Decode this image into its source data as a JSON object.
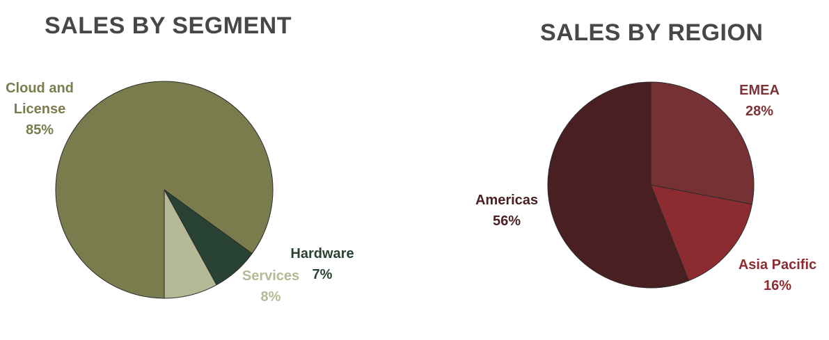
{
  "chart_data": [
    {
      "type": "pie",
      "title": "SALES BY SEGMENT",
      "slices": [
        {
          "label": "Cloud and License",
          "label_lines": [
            "Cloud and",
            "License"
          ],
          "value_label": "85%",
          "value": 85,
          "color": "#7a7c4d",
          "label_color": "#7a7c4d"
        },
        {
          "label": "Hardware",
          "label_lines": [
            "Hardware"
          ],
          "value_label": "7%",
          "value": 7,
          "color": "#284334",
          "label_color": "#284334"
        },
        {
          "label": "Services",
          "label_lines": [
            "Services"
          ],
          "value_label": "8%",
          "value": 8,
          "color": "#b5b995",
          "label_color": "#b5b995"
        }
      ]
    },
    {
      "type": "pie",
      "title": "SALES BY REGION",
      "slices": [
        {
          "label": "EMEA",
          "label_lines": [
            "EMEA"
          ],
          "value_label": "28%",
          "value": 28,
          "color": "#763135",
          "label_color": "#7c3338"
        },
        {
          "label": "Asia Pacific",
          "label_lines": [
            "Asia Pacific"
          ],
          "value_label": "16%",
          "value": 16,
          "color": "#8c2c31",
          "label_color": "#8c2c31"
        },
        {
          "label": "Americas",
          "label_lines": [
            "Americas"
          ],
          "value_label": "56%",
          "value": 56,
          "color": "#4a1f22",
          "label_color": "#4a1f22"
        }
      ]
    }
  ]
}
